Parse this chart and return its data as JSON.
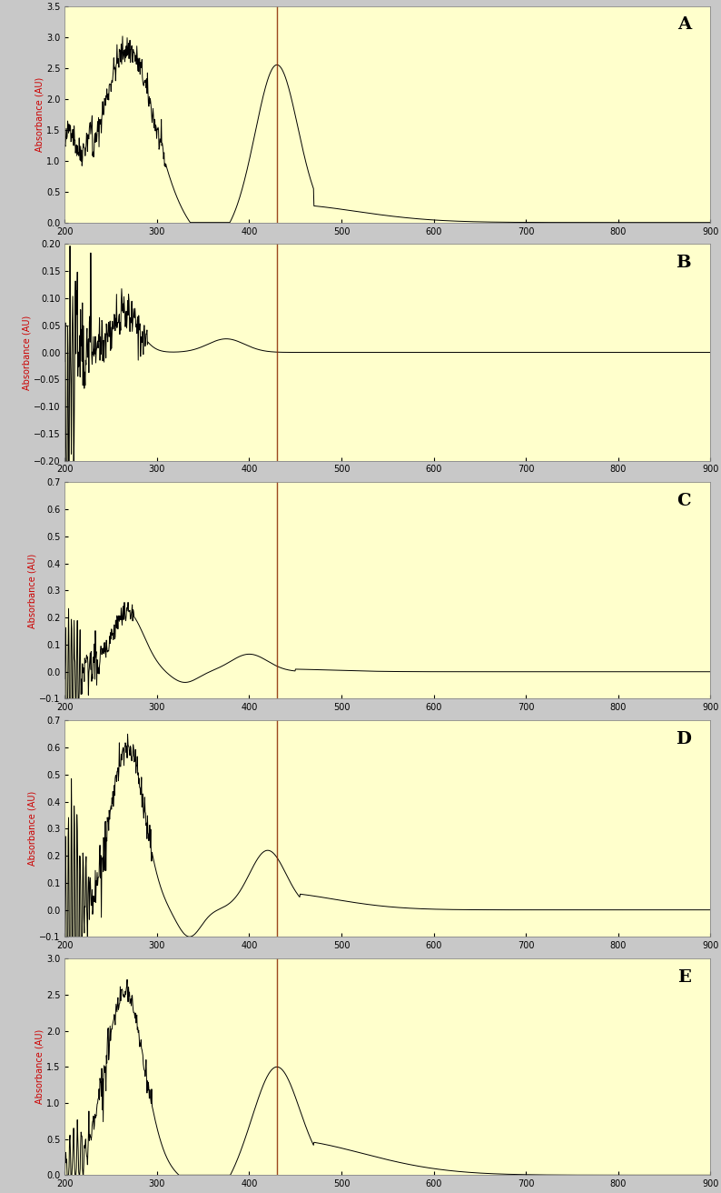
{
  "background_color": "#ffffcc",
  "outer_background": "#c8c8c8",
  "line_color": "#000000",
  "vline_color": "#8B2500",
  "vline_x": 430,
  "label_color": "#cc0000",
  "x_min": 200,
  "x_max": 900,
  "x_ticks": [
    200,
    300,
    400,
    500,
    600,
    700,
    800,
    900
  ],
  "panels": [
    {
      "label": "A",
      "y_min": 0,
      "y_max": 3.5,
      "y_ticks": [
        0,
        0.5,
        1.0,
        1.5,
        2.0,
        2.5,
        3.0,
        3.5
      ],
      "ylabel": "Absorbance (AU)"
    },
    {
      "label": "B",
      "y_min": -0.2,
      "y_max": 0.2,
      "y_ticks": [
        -0.2,
        -0.15,
        -0.1,
        -0.05,
        0,
        0.05,
        0.1,
        0.15,
        0.2
      ],
      "ylabel": "Absorbance (AU)"
    },
    {
      "label": "C",
      "y_min": -0.1,
      "y_max": 0.7,
      "y_ticks": [
        -0.1,
        0,
        0.1,
        0.2,
        0.3,
        0.4,
        0.5,
        0.6,
        0.7
      ],
      "ylabel": "Absorbance (AU)"
    },
    {
      "label": "D",
      "y_min": -0.1,
      "y_max": 0.7,
      "y_ticks": [
        -0.1,
        0,
        0.1,
        0.2,
        0.3,
        0.4,
        0.5,
        0.6,
        0.7
      ],
      "ylabel": "Absorbance (AU)"
    },
    {
      "label": "E",
      "y_min": 0,
      "y_max": 3.0,
      "y_ticks": [
        0,
        0.5,
        1.0,
        1.5,
        2.0,
        2.5,
        3.0
      ],
      "ylabel": "Absorbance (AU)"
    }
  ]
}
